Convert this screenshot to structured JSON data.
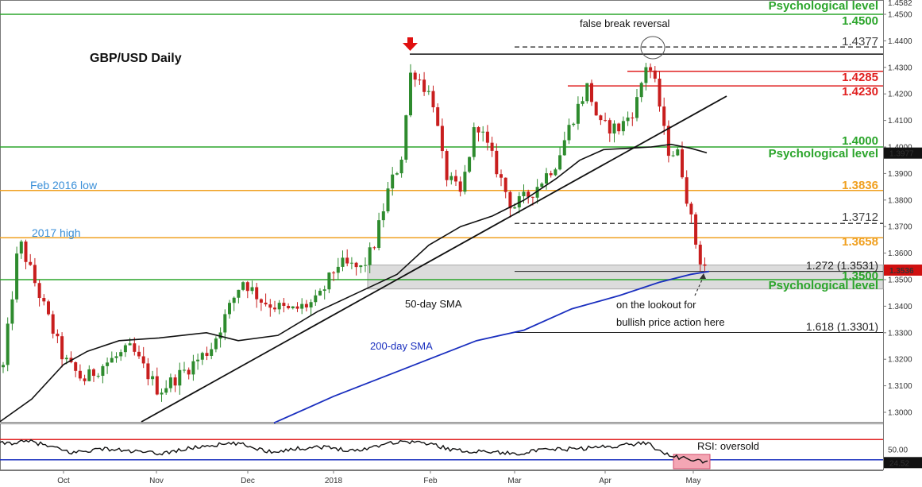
{
  "chart_data": {
    "type": "candlestick",
    "title": "GBP/USD Daily",
    "x_labels": [
      "Oct",
      "Nov",
      "Dec",
      "2018",
      "Feb",
      "Mar",
      "Apr",
      "May"
    ],
    "y_ticks": [
      1.3,
      1.31,
      1.32,
      1.33,
      1.34,
      1.35,
      1.36,
      1.37,
      1.38,
      1.39,
      1.4,
      1.41,
      1.42,
      1.43,
      1.44,
      1.45
    ],
    "y_axis_top_label": "1.4582",
    "ylim": [
      1.295,
      1.4582
    ],
    "current_price": {
      "label": "1.3536",
      "value": 1.3536,
      "color": "#d01010"
    },
    "sma_badge": {
      "label": "1.3977",
      "value": 1.3977
    },
    "levels": [
      {
        "value": 1.45,
        "color": "#2ba52b",
        "label": "1.4500",
        "label2": "Psychological level"
      },
      {
        "value": 1.4,
        "color": "#2ba52b",
        "label": "1.4000",
        "label2": "Psychological level"
      },
      {
        "value": 1.35,
        "color": "#2ba52b",
        "label": "1.3500",
        "label2": "Psychological level"
      },
      {
        "value": 1.3836,
        "color": "#f0a020",
        "label": "1.3836",
        "label2": "Feb 2016 low"
      },
      {
        "value": 1.3658,
        "color": "#f0a020",
        "label": "1.3658",
        "label2": "2017 high"
      },
      {
        "value": 1.4285,
        "color": "#e02020",
        "label": "1.4285"
      },
      {
        "value": 1.423,
        "color": "#e02020",
        "label": "1.4230"
      },
      {
        "value": 1.4377,
        "color": "#444444",
        "label": "1.4377",
        "style": "dashed"
      },
      {
        "value": 1.3712,
        "color": "#444444",
        "label": "1.3712",
        "style": "dashed"
      },
      {
        "value": 1.3531,
        "color": "#222222",
        "label": "1.272 (1.3531)"
      },
      {
        "value": 1.3301,
        "color": "#222222",
        "label": "1.618 (1.3301)"
      }
    ],
    "annotations": {
      "false_break": "false break reversal",
      "sma50": "50-day SMA",
      "sma200": "200-day SMA",
      "lookout_line1": "on the lookout for",
      "lookout_line2": "bullish price action here",
      "rsi": "RSI: oversold"
    },
    "rsi": {
      "y_ticks": [
        "50.00"
      ],
      "current_label": "24.52",
      "current_value": 24.52,
      "overbought": 70,
      "oversold": 30
    },
    "colors": {
      "bull": "#2e8b2e",
      "bear": "#c81e1e",
      "sma50": "#111111",
      "sma200": "#1a2fbf",
      "trend": "#111111"
    }
  }
}
